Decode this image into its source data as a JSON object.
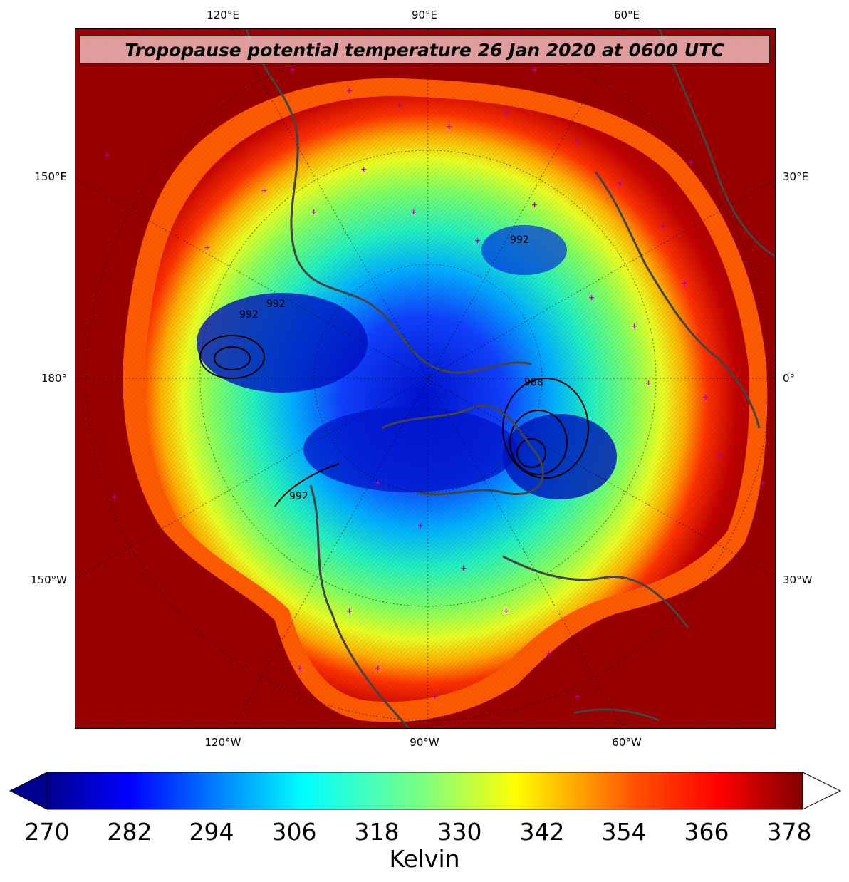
{
  "title": "Tropopause potential temperature 26 Jan 2020 at 0600 UTC",
  "map": {
    "projection": "north-polar-stereographic",
    "fill_variable": "tropopause potential temperature",
    "contour_labels": [
      "992",
      "988",
      "992",
      "992",
      "992"
    ],
    "station_marker_color": "#b000b0",
    "coastline_color": "#444444"
  },
  "longitude_labels": {
    "top": [
      "120°E",
      "90°E",
      "60°E"
    ],
    "bottom": [
      "120°W",
      "90°W",
      "60°W"
    ],
    "left": [
      "150°E",
      "180°",
      "150°W"
    ],
    "right": [
      "30°E",
      "0°",
      "30°W"
    ]
  },
  "colorbar": {
    "ticks": [
      "270",
      "282",
      "294",
      "306",
      "318",
      "330",
      "342",
      "354",
      "366",
      "378"
    ],
    "label": "Kelvin",
    "min": 270,
    "max": 378,
    "colormap": "jet",
    "extend": "both"
  }
}
